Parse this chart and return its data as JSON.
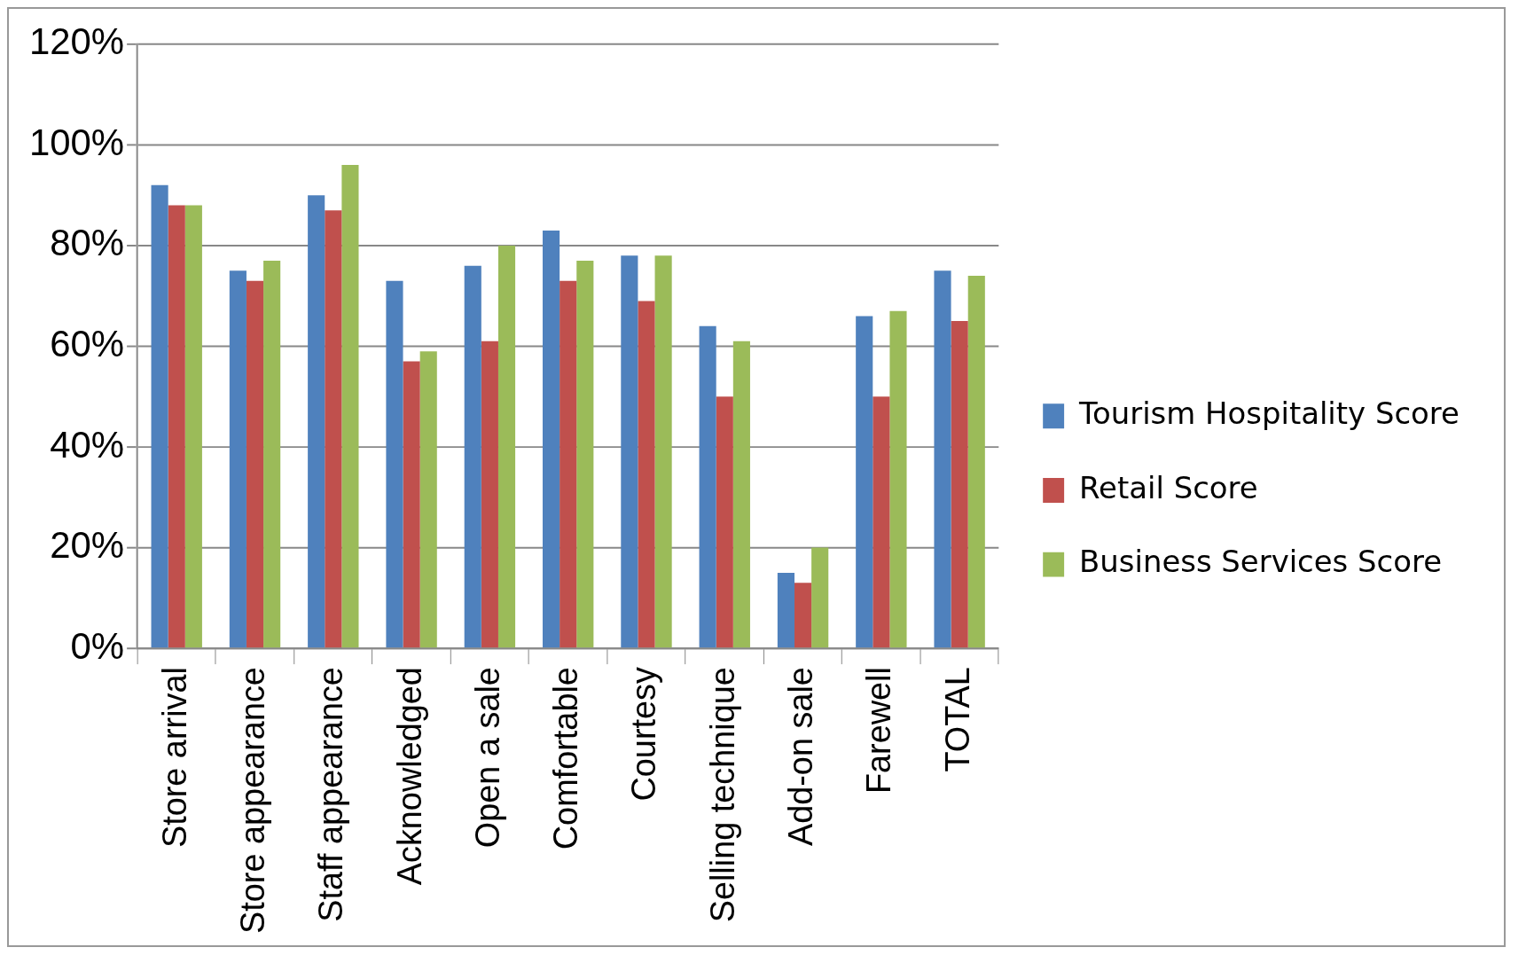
{
  "chart_data": {
    "type": "bar",
    "categories": [
      "Store arrival",
      "Store appearance",
      "Staff appearance",
      "Acknowledged",
      "Open a sale",
      "Comfortable",
      "Courtesy",
      "Selling technique",
      "Add-on sale",
      "Farewell",
      "TOTAL"
    ],
    "series": [
      {
        "name": "Tourism Hospitality Score",
        "color": "#4f81bd",
        "values": [
          92,
          75,
          90,
          73,
          76,
          83,
          78,
          64,
          15,
          66,
          75
        ]
      },
      {
        "name": "Retail Score",
        "color": "#c0504d",
        "values": [
          88,
          73,
          87,
          57,
          61,
          73,
          69,
          50,
          13,
          50,
          65
        ]
      },
      {
        "name": "Business Services Score",
        "color": "#9bbb59",
        "values": [
          88,
          77,
          96,
          59,
          80,
          77,
          78,
          61,
          20,
          67,
          74
        ]
      }
    ],
    "ylim": [
      0,
      120
    ],
    "yticks": [
      {
        "value": 0,
        "label": "0%"
      },
      {
        "value": 20,
        "label": "20%"
      },
      {
        "value": 40,
        "label": "40%"
      },
      {
        "value": 60,
        "label": "60%"
      },
      {
        "value": 80,
        "label": "80%"
      },
      {
        "value": 100,
        "label": "100%"
      },
      {
        "value": 120,
        "label": "120%"
      }
    ],
    "grid": "y",
    "legend": "right"
  }
}
